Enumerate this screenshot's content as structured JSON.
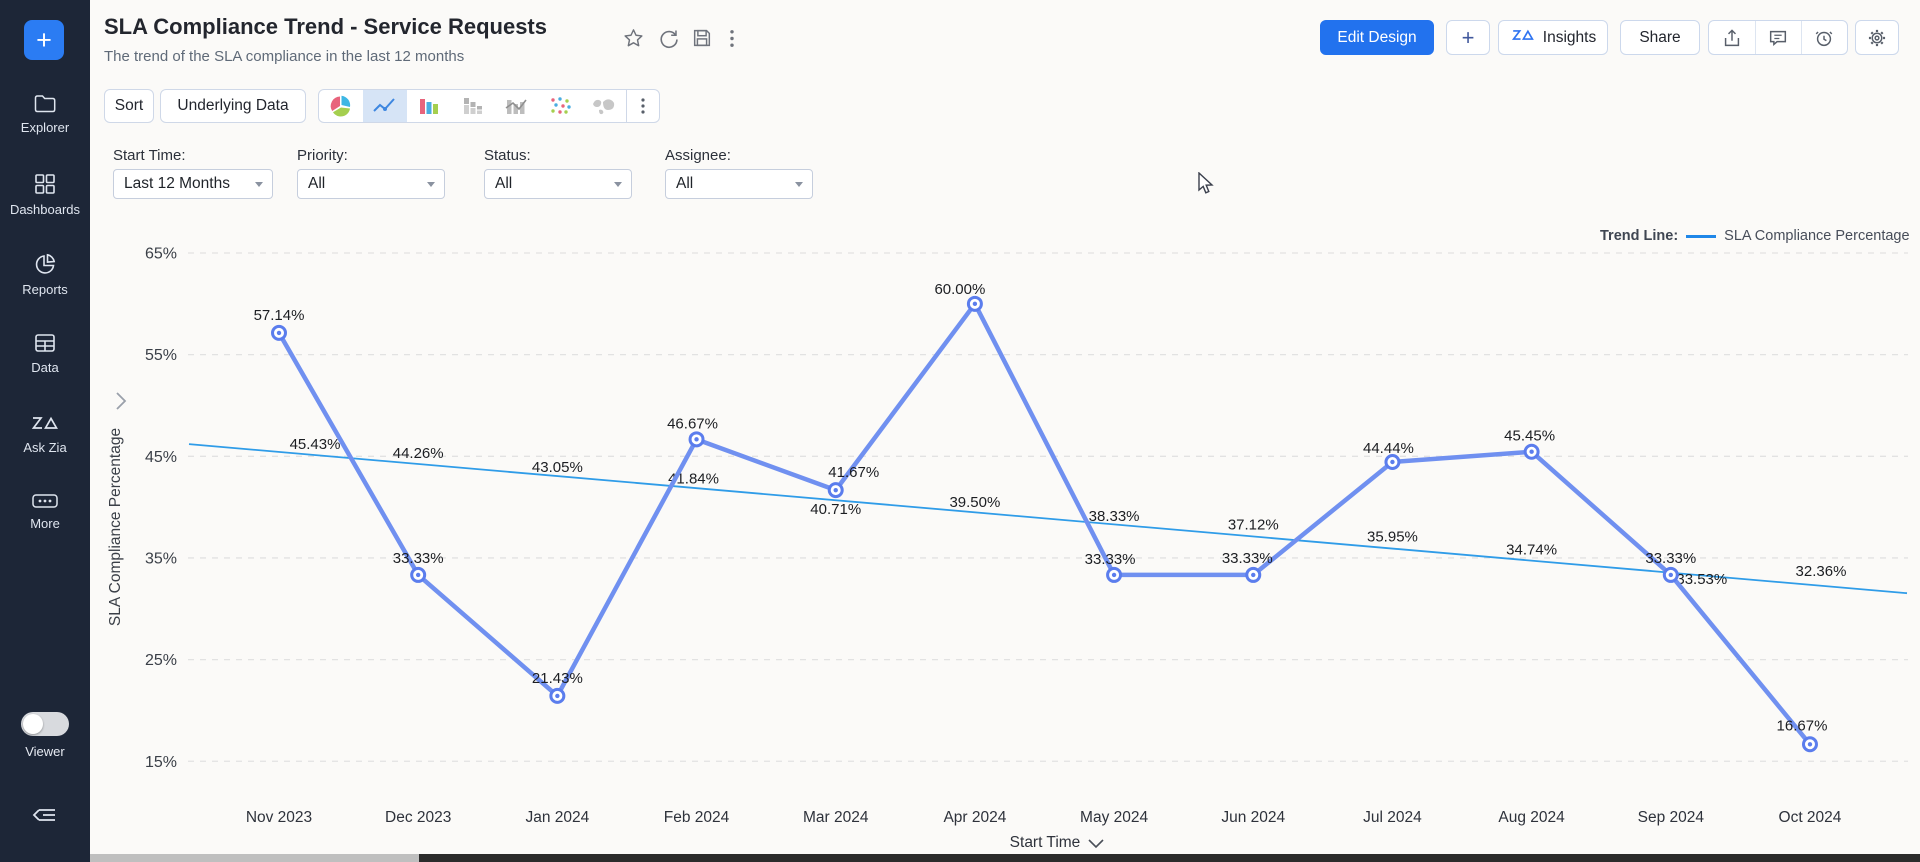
{
  "app": {
    "accent_blue": "#2272ee",
    "sidebar_bg": "#1d2637",
    "series_color": "#7090f0",
    "trend_color": "#2f9ce8"
  },
  "sidebar": {
    "plus_label": "+",
    "items": [
      {
        "label": "Explorer",
        "icon": "folder-icon"
      },
      {
        "label": "Dashboards",
        "icon": "grid-icon"
      },
      {
        "label": "Reports",
        "icon": "pie-chart-icon"
      },
      {
        "label": "Data",
        "icon": "table-icon"
      },
      {
        "label": "Ask Zia",
        "icon": "zia-icon"
      },
      {
        "label": "More",
        "icon": "ellipsis-icon"
      }
    ],
    "viewer_label": "Viewer"
  },
  "header": {
    "title": "SLA Compliance Trend - Service Requests",
    "subtitle": "The trend of the SLA compliance in the last 12 months",
    "actions": {
      "edit_design": "Edit Design",
      "plus": "+",
      "insights": "Insights",
      "share": "Share"
    }
  },
  "toolbar": {
    "sort": "Sort",
    "underlying_data": "Underlying Data"
  },
  "filters": [
    {
      "label": "Start Time:",
      "value": "Last 12 Months"
    },
    {
      "label": "Priority:",
      "value": "All"
    },
    {
      "label": "Status:",
      "value": "All"
    },
    {
      "label": "Assignee:",
      "value": "All"
    }
  ],
  "legend": {
    "prefix": "Trend Line:",
    "series": "SLA Compliance Percentage"
  },
  "chart_data": {
    "type": "line",
    "categories": [
      "Nov 2023",
      "Dec 2023",
      "Jan 2024",
      "Feb 2024",
      "Mar 2024",
      "Apr 2024",
      "May 2024",
      "Jun 2024",
      "Jul 2024",
      "Aug 2024",
      "Sep 2024",
      "Oct 2024"
    ],
    "series": [
      {
        "name": "SLA Compliance Percentage",
        "values": [
          57.14,
          33.33,
          21.43,
          46.67,
          41.67,
          60.0,
          33.33,
          33.33,
          44.44,
          45.45,
          33.33,
          16.67
        ]
      },
      {
        "name": "Trend Line",
        "values": [
          45.43,
          44.26,
          43.05,
          41.84,
          40.71,
          39.5,
          38.33,
          37.12,
          35.95,
          34.74,
          33.53,
          32.36
        ]
      }
    ],
    "xlabel": "Start Time",
    "ylabel": "SLA Compliance Percentage",
    "yticks": [
      65,
      55,
      45,
      35,
      25,
      15
    ],
    "ytick_suffix": "%",
    "ylim": [
      13,
      67
    ],
    "grid": "horizontal-dashed",
    "legend_position": "top-right",
    "data_label_format": "0.00%"
  }
}
